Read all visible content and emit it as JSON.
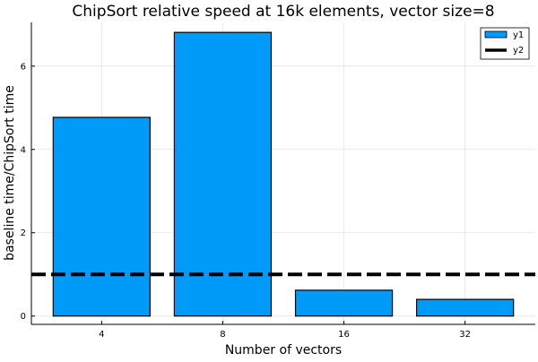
{
  "chart_data": {
    "type": "bar",
    "title": "ChipSort relative speed at 16k elements, vector size=8",
    "xlabel": "Number of vectors",
    "ylabel": "baseline time/ChipSort time",
    "categories": [
      "4",
      "8",
      "16",
      "32"
    ],
    "series": [
      {
        "name": "y1",
        "kind": "bar",
        "values": [
          4.77,
          6.81,
          0.62,
          0.4
        ],
        "color": "#009AF9"
      },
      {
        "name": "y2",
        "kind": "hline",
        "value": 1.0,
        "color": "#000000",
        "style": "dashed"
      }
    ],
    "ylim": [
      -0.2,
      7.05
    ],
    "yticks": [
      0,
      2,
      4,
      6
    ],
    "grid": true,
    "legend_position": "top-right"
  }
}
